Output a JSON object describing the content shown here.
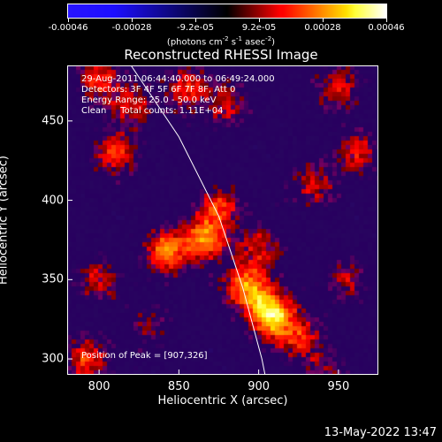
{
  "colorbar": {
    "tick_labels": [
      "-0.00046",
      "-0.00028",
      "-9.2e-05",
      "9.2e-05",
      "0.00028",
      "0.00046"
    ],
    "units_text": "(photons cm",
    "units_exp1": "-2",
    "units_mid": " s",
    "units_exp2": "-1",
    "units_end": " asec",
    "units_exp3": "-2",
    "units_close": ")"
  },
  "title": "Reconstructed RHESSI Image",
  "info": {
    "time_range": "29-Aug-2011 06:44:40.000 to 06:49:24.000",
    "detectors": "Detectors: 3F 4F 5F 6F 7F 8F, Att 0",
    "energy": "Energy Range: 25.0 - 50.0 keV",
    "method": "Clean     Total counts: 1.11E+04",
    "peak": "Position of Peak = [907,326]"
  },
  "footer_date": "13-May-2022 13:47",
  "chart_data": {
    "type": "heatmap",
    "title": "Reconstructed RHESSI Image",
    "xlabel": "Heliocentric X (arcsec)",
    "ylabel": "Heliocentric Y (arcsec)",
    "xlim": [
      780,
      975
    ],
    "ylim": [
      290,
      485
    ],
    "x_ticks": [
      800,
      850,
      900,
      950
    ],
    "y_ticks": [
      300,
      350,
      400,
      450
    ],
    "colorbar_range": [
      -0.00046,
      0.00046
    ],
    "colormap": "hot-bipolar",
    "peak_position": [
      907,
      326
    ],
    "sources": [
      {
        "x": 908,
        "y": 328,
        "intensity": 1.0
      },
      {
        "x": 893,
        "y": 345,
        "intensity": 0.8
      },
      {
        "x": 866,
        "y": 375,
        "intensity": 0.75
      },
      {
        "x": 842,
        "y": 368,
        "intensity": 0.7
      },
      {
        "x": 875,
        "y": 395,
        "intensity": 0.55
      },
      {
        "x": 900,
        "y": 370,
        "intensity": 0.45
      },
      {
        "x": 925,
        "y": 315,
        "intensity": 0.5
      },
      {
        "x": 810,
        "y": 430,
        "intensity": 0.55
      },
      {
        "x": 855,
        "y": 470,
        "intensity": 0.5
      },
      {
        "x": 800,
        "y": 475,
        "intensity": 0.5
      },
      {
        "x": 820,
        "y": 460,
        "intensity": 0.45
      },
      {
        "x": 880,
        "y": 460,
        "intensity": 0.4
      },
      {
        "x": 950,
        "y": 470,
        "intensity": 0.45
      },
      {
        "x": 962,
        "y": 430,
        "intensity": 0.45
      },
      {
        "x": 935,
        "y": 410,
        "intensity": 0.4
      },
      {
        "x": 792,
        "y": 300,
        "intensity": 0.55
      },
      {
        "x": 800,
        "y": 350,
        "intensity": 0.4
      },
      {
        "x": 955,
        "y": 350,
        "intensity": 0.35
      },
      {
        "x": 940,
        "y": 295,
        "intensity": 0.3
      },
      {
        "x": 830,
        "y": 320,
        "intensity": 0.25
      }
    ],
    "limb": [
      [
        820,
        485
      ],
      [
        850,
        440
      ],
      [
        875,
        390
      ],
      [
        890,
        345
      ],
      [
        902,
        300
      ],
      [
        904,
        290
      ]
    ],
    "colors": {
      "background": "#000000",
      "text": "#ffffff",
      "limb": "#ffffff"
    }
  }
}
